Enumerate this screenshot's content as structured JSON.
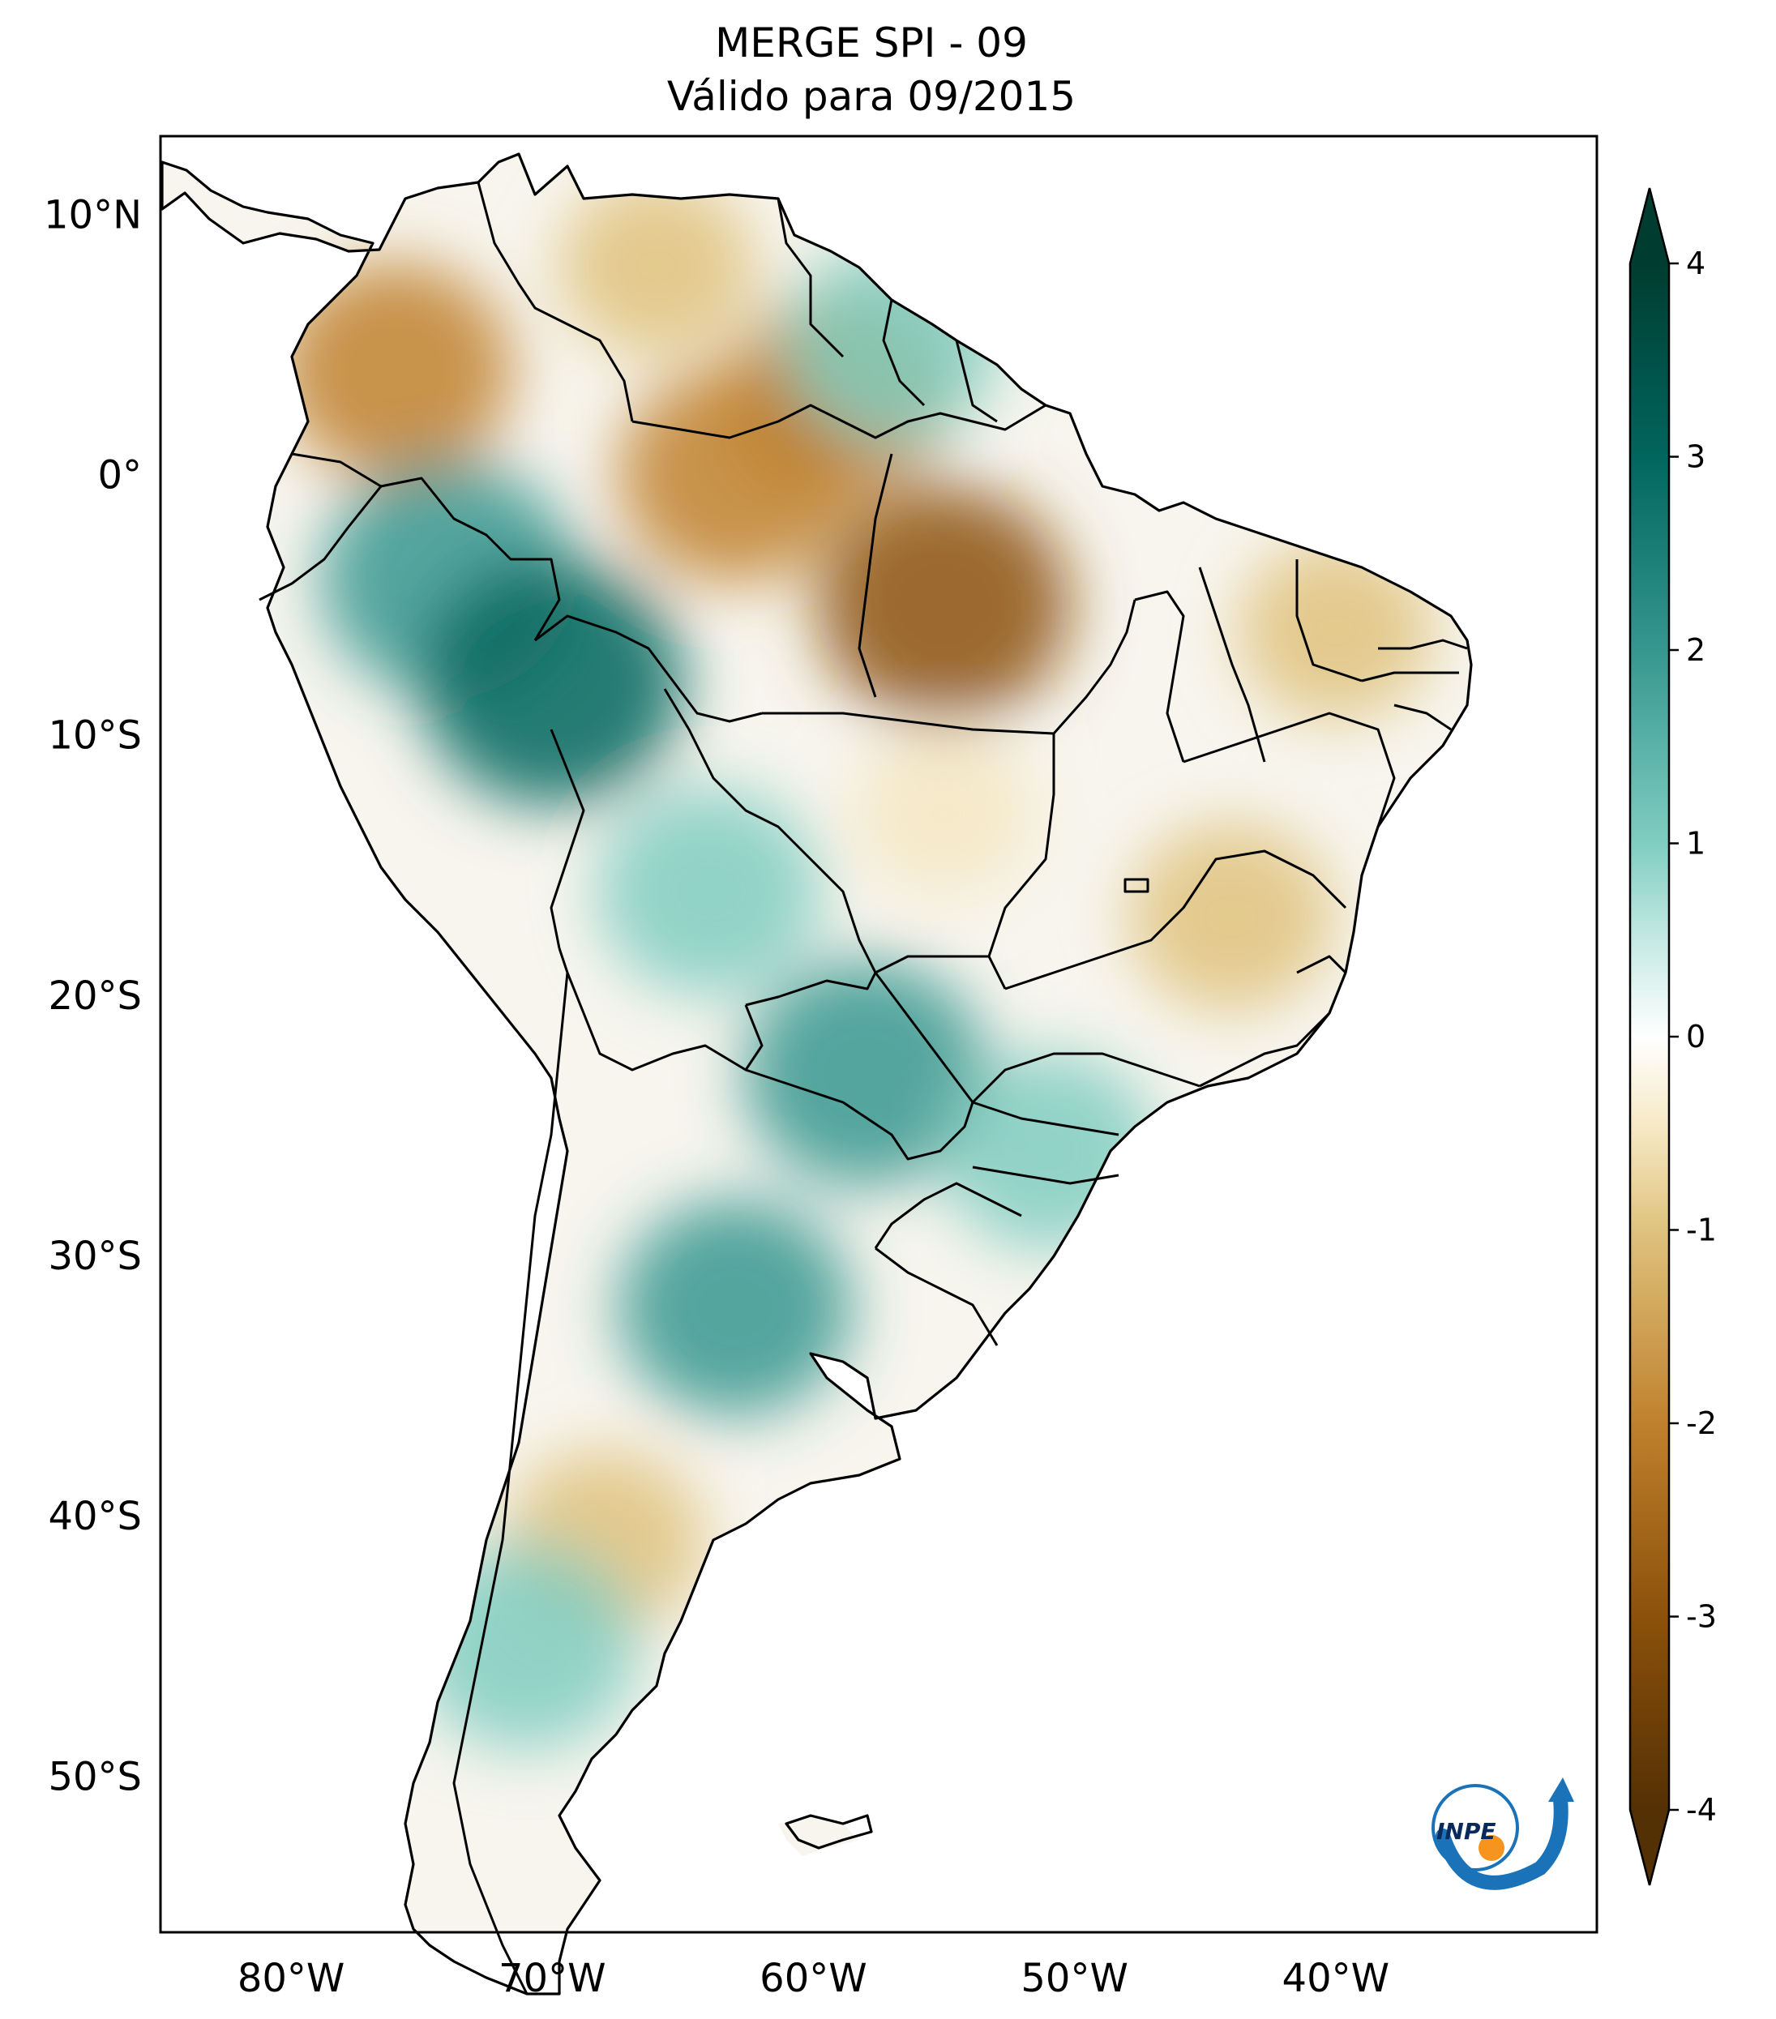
{
  "title": {
    "line1": "MERGE   SPI - 09",
    "line2": "Válido para 09/2015"
  },
  "axes": {
    "latitude_labels": [
      {
        "lat": 10,
        "label": "10°N"
      },
      {
        "lat": 0,
        "label": "0°"
      },
      {
        "lat": -10,
        "label": "10°S"
      },
      {
        "lat": -20,
        "label": "20°S"
      },
      {
        "lat": -30,
        "label": "30°S"
      },
      {
        "lat": -40,
        "label": "40°S"
      },
      {
        "lat": -50,
        "label": "50°S"
      }
    ],
    "longitude_labels": [
      {
        "lon": -80,
        "label": "80°W"
      },
      {
        "lon": -70,
        "label": "70°W"
      },
      {
        "lon": -60,
        "label": "60°W"
      },
      {
        "lon": -50,
        "label": "50°W"
      },
      {
        "lon": -40,
        "label": "40°W"
      }
    ],
    "lon_range": [
      -85,
      -30
    ],
    "lat_range": [
      -56,
      13
    ]
  },
  "colorbar": {
    "min": -4,
    "max": 4,
    "ticks": [
      {
        "value": 4,
        "label": "4"
      },
      {
        "value": 3,
        "label": "3"
      },
      {
        "value": 2,
        "label": "2"
      },
      {
        "value": 1,
        "label": "1"
      },
      {
        "value": 0,
        "label": "0"
      },
      {
        "value": -1,
        "label": "-1"
      },
      {
        "value": -2,
        "label": "-2"
      },
      {
        "value": -3,
        "label": "-3"
      },
      {
        "value": -4,
        "label": "-4"
      }
    ],
    "colors": {
      "neg4": "#543005",
      "neg3": "#8c510a",
      "neg2": "#bf812d",
      "neg1": "#dfc27d",
      "neg05": "#f6e8c3",
      "zero": "#ffffff",
      "pos05": "#c7eae5",
      "pos1": "#80cdc1",
      "pos2": "#35978f",
      "pos3": "#01665e",
      "pos4": "#003c30"
    }
  },
  "logo": {
    "text": "INPE",
    "colors": {
      "arrow": "#1a73b8",
      "sun": "#f7941d"
    }
  },
  "anomaly_regions": [
    {
      "name": "colombia-dry",
      "lon": -76,
      "lat": 4,
      "spi": -1.8
    },
    {
      "name": "venezuela-dry",
      "lon": -66,
      "lat": 8,
      "spi": -1.0
    },
    {
      "name": "amazon-north-dry",
      "lon": -63,
      "lat": 0,
      "spi": -1.8
    },
    {
      "name": "guyana-dry",
      "lon": -59,
      "lat": 3,
      "spi": -1.6
    },
    {
      "name": "para-dry",
      "lon": -55,
      "lat": -5,
      "spi": -2.2
    },
    {
      "name": "northeast-dry",
      "lon": -40,
      "lat": -6,
      "spi": -1.0
    },
    {
      "name": "mato-grosso-dry",
      "lon": -55,
      "lat": -13,
      "spi": -0.8
    },
    {
      "name": "minas-dry",
      "lon": -44,
      "lat": -17,
      "spi": -1.2
    },
    {
      "name": "patagonia-dry",
      "lon": -68,
      "lat": -41,
      "spi": -1.1
    },
    {
      "name": "peru-amazon-wet",
      "lon": -74,
      "lat": -4,
      "spi": 2.2
    },
    {
      "name": "acre-wet",
      "lon": -70,
      "lat": -8,
      "spi": 2.4
    },
    {
      "name": "bolivia-wet",
      "lon": -64,
      "lat": -16,
      "spi": 1.6
    },
    {
      "name": "paraguay-wet",
      "lon": -58,
      "lat": -23,
      "spi": 2.0
    },
    {
      "name": "argentina-wet",
      "lon": -63,
      "lat": -32,
      "spi": 1.8
    },
    {
      "name": "chile-andes-wet",
      "lon": -71,
      "lat": -45,
      "spi": 1.6
    },
    {
      "name": "guiana-wet",
      "lon": -57,
      "lat": 5,
      "spi": 1.4
    },
    {
      "name": "south-brazil-wet",
      "lon": -51,
      "lat": -26,
      "spi": 1.4
    }
  ]
}
